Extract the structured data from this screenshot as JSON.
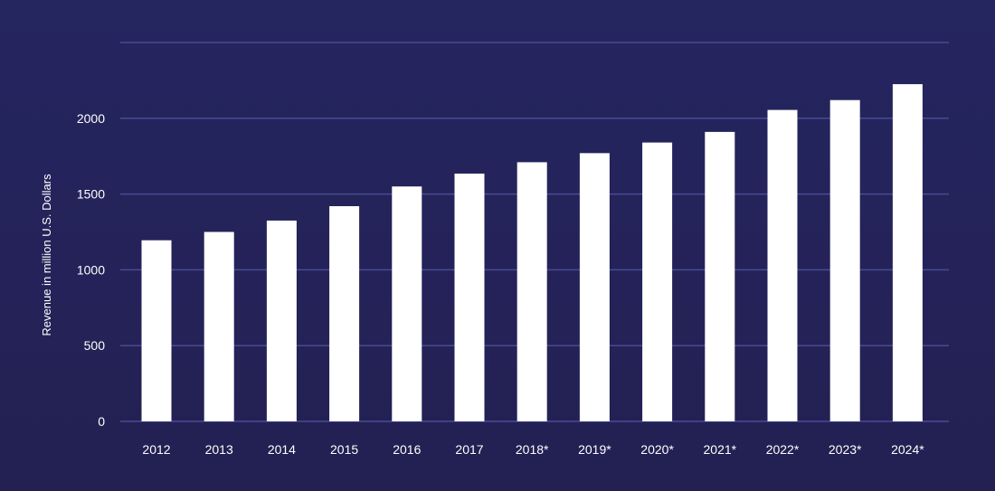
{
  "chart_data": {
    "type": "bar",
    "title": "",
    "xlabel": "",
    "ylabel": "Revenue in million U.S. Dollars",
    "categories": [
      "2012",
      "2013",
      "2014",
      "2015",
      "2016",
      "2017",
      "2018*",
      "2019*",
      "2020*",
      "2021*",
      "2022*",
      "2023*",
      "2024*"
    ],
    "values": [
      1195,
      1250,
      1325,
      1420,
      1550,
      1635,
      1710,
      1770,
      1840,
      1910,
      2055,
      2120,
      2225
    ],
    "ylim": [
      0,
      2500
    ],
    "yticks": [
      0,
      500,
      1000,
      1500,
      2000
    ],
    "grid": true,
    "legend": "none",
    "colors": {
      "background": "#252560",
      "bar": "#ffffff",
      "grid": "#4a4a94",
      "text": "#ffffff"
    }
  }
}
